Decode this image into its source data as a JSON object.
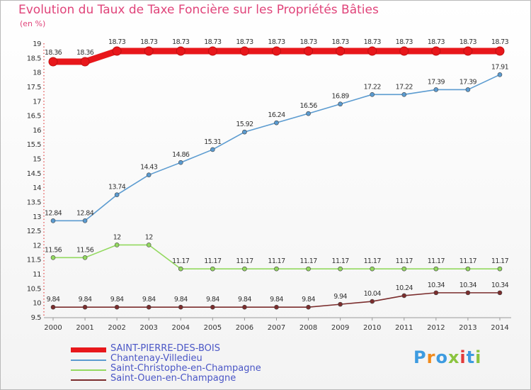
{
  "header": {
    "title": "Evolution du Taux de Taxe Foncière sur les Propriétés Bâties",
    "unit": "(en %)"
  },
  "logo": {
    "text": "Proxiti",
    "colors": [
      "#3d9be0",
      "#f08a1c",
      "#3d9be0",
      "#8bc43f",
      "#e23b3b",
      "#3d9be0",
      "#8bc43f"
    ]
  },
  "chart_data": {
    "type": "line",
    "title": "Evolution du Taux de Taxe Foncière sur les Propriétés Bâties",
    "ylabel": "(en %)",
    "xlabel": "",
    "x": [
      "2000",
      "2001",
      "2002",
      "2003",
      "2004",
      "2005",
      "2006",
      "2007",
      "2008",
      "2009",
      "2010",
      "2011",
      "2012",
      "2013",
      "2014"
    ],
    "ylim": [
      9.5,
      19
    ],
    "yticks": [
      "9.5",
      "10",
      "10.5",
      "11",
      "11.5",
      "12",
      "12.5",
      "13",
      "13.5",
      "14",
      "14.5",
      "15",
      "15.5",
      "16",
      "16.5",
      "17",
      "17.5",
      "18",
      "18.5",
      "19"
    ],
    "grid": false,
    "legend_position": "bottom-left",
    "series": [
      {
        "name": "SAINT-PIERRE-DES-BOIS",
        "color": "#e8171b",
        "labels": [
          "18.36",
          "18.36",
          "18.73",
          "18.73",
          "18.73",
          "18.73",
          "18.73",
          "18.73",
          "18.73",
          "18.73",
          "18.73",
          "18.73",
          "18.73",
          "18.73",
          "18.73"
        ],
        "values": [
          18.36,
          18.36,
          18.73,
          18.73,
          18.73,
          18.73,
          18.73,
          18.73,
          18.73,
          18.73,
          18.73,
          18.73,
          18.73,
          18.73,
          18.73
        ]
      },
      {
        "name": "Chantenay-Villedieu",
        "color": "#5b9bd0",
        "labels": [
          "12.84",
          "12.84",
          "13.74",
          "14.43",
          "14.86",
          "15.31",
          "15.92",
          "16.24",
          "16.56",
          "16.89",
          "17.22",
          "17.22",
          "17.39",
          "17.39",
          "17.91"
        ],
        "values": [
          12.84,
          12.84,
          13.74,
          14.43,
          14.86,
          15.31,
          15.92,
          16.24,
          16.56,
          16.89,
          17.22,
          17.22,
          17.39,
          17.39,
          17.91
        ]
      },
      {
        "name": "Saint-Christophe-en-Champagne",
        "color": "#93d95f",
        "labels": [
          "11.56",
          "11.56",
          "12",
          "12",
          "11.17",
          "11.17",
          "11.17",
          "11.17",
          "11.17",
          "11.17",
          "11.17",
          "11.17",
          "11.17",
          "11.17",
          "11.17"
        ],
        "values": [
          11.56,
          11.56,
          12,
          12,
          11.17,
          11.17,
          11.17,
          11.17,
          11.17,
          11.17,
          11.17,
          11.17,
          11.17,
          11.17,
          11.17
        ]
      },
      {
        "name": "Saint-Ouen-en-Champagne",
        "color": "#7b2d2d",
        "labels": [
          "9.84",
          "9.84",
          "9.84",
          "9.84",
          "9.84",
          "9.84",
          "9.84",
          "9.84",
          "9.84",
          "9.94",
          "10.04",
          "10.24",
          "10.34",
          "10.34",
          "10.34"
        ],
        "values": [
          9.84,
          9.84,
          9.84,
          9.84,
          9.84,
          9.84,
          9.84,
          9.84,
          9.84,
          9.94,
          10.04,
          10.24,
          10.34,
          10.34,
          10.34
        ]
      }
    ]
  }
}
